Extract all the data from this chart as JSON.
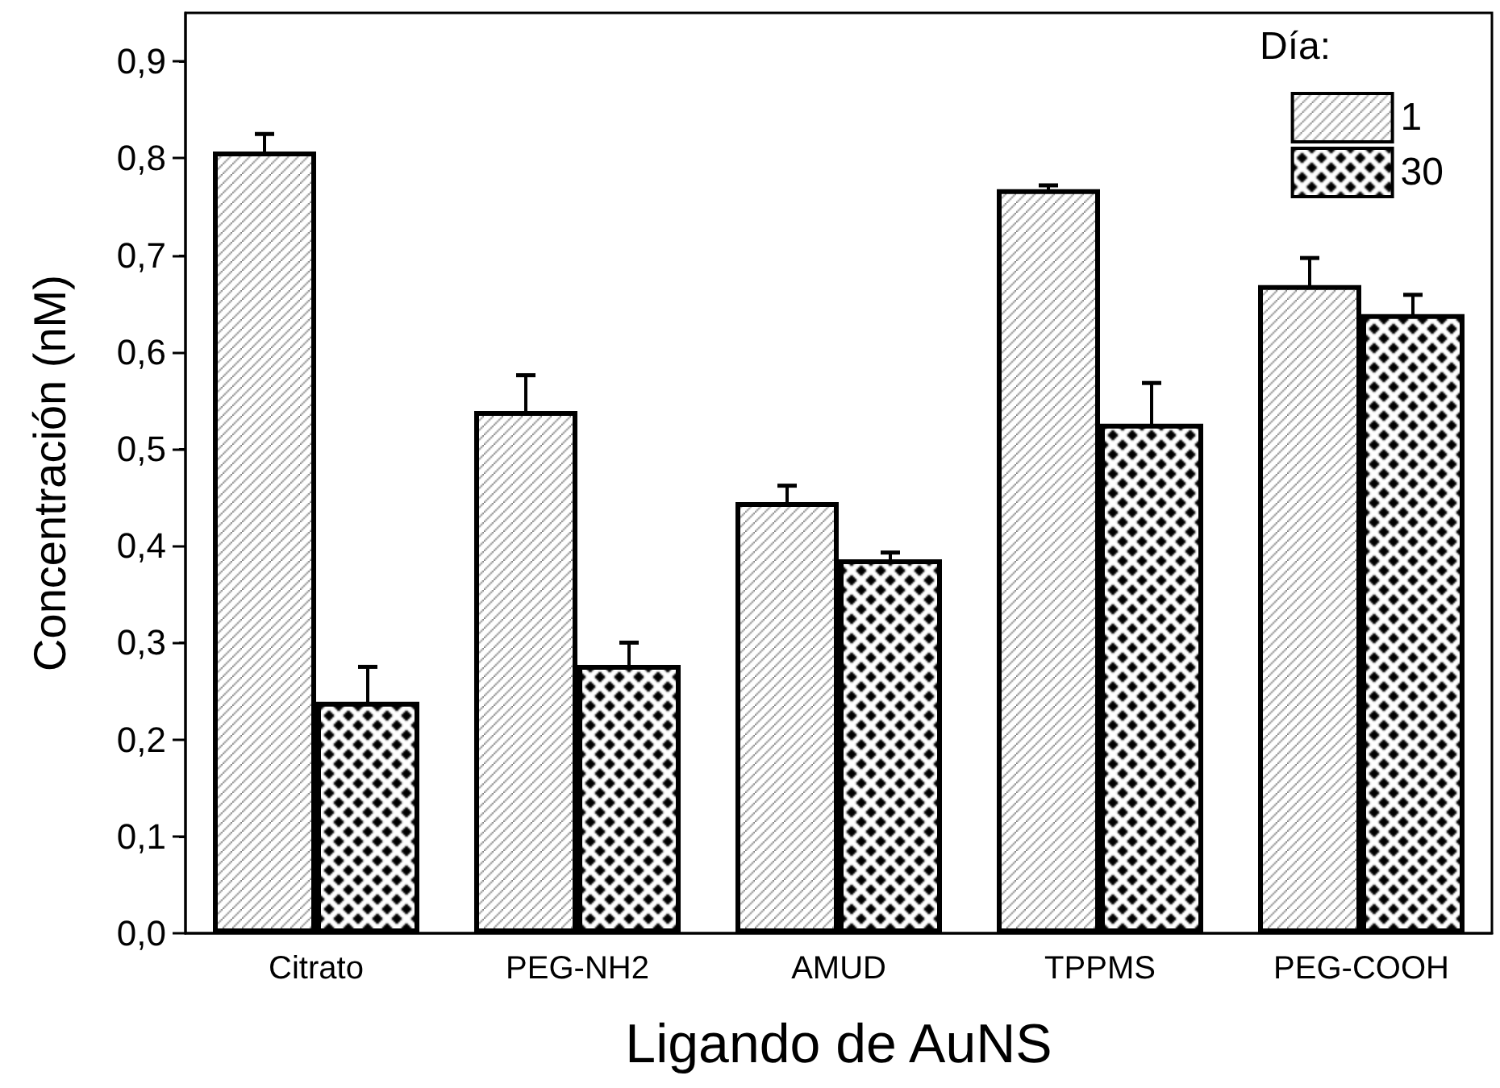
{
  "chart_data": {
    "type": "bar",
    "xlabel": "Ligando de AuNS",
    "ylabel": "Concentración (nM)",
    "legend_title": "Día:",
    "legend": "top right",
    "grid": false,
    "categories": [
      "Citrato",
      "PEG-NH2",
      "AMUD",
      "TPPMS",
      "PEG-COOH"
    ],
    "series": [
      {
        "name": "1",
        "color": "#000000",
        "values": [
          0.807,
          0.539,
          0.445,
          0.768,
          0.669
        ],
        "errors": [
          0.018,
          0.037,
          0.017,
          0.004,
          0.028
        ]
      },
      {
        "name": "30",
        "color": "#000000",
        "values": [
          0.239,
          0.277,
          0.386,
          0.526,
          0.639
        ],
        "errors": [
          0.036,
          0.023,
          0.007,
          0.042,
          0.02
        ]
      }
    ],
    "ylim": [
      0,
      0.95
    ],
    "yticks": [
      {
        "value": 0,
        "label": "0,0"
      },
      {
        "value": 0.1,
        "label": "0,1"
      },
      {
        "value": 0.2,
        "label": "0,2"
      },
      {
        "value": 0.3,
        "label": "0,3"
      },
      {
        "value": 0.4,
        "label": "0,4"
      },
      {
        "value": 0.5,
        "label": "0,5"
      },
      {
        "value": 0.6,
        "label": "0,6"
      },
      {
        "value": 0.7,
        "label": "0,7"
      },
      {
        "value": 0.8,
        "label": "0,8"
      },
      {
        "value": 0.9,
        "label": "0,9"
      }
    ]
  }
}
